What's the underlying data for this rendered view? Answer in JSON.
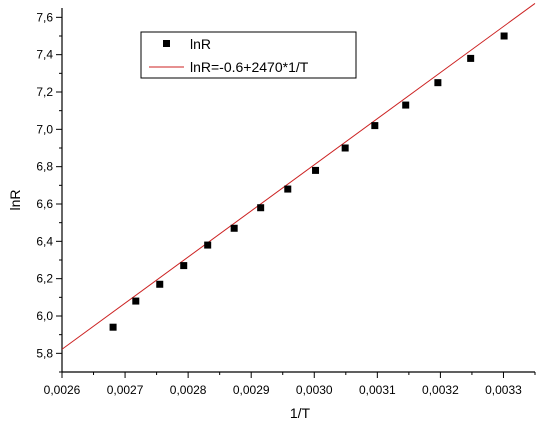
{
  "chart_data": {
    "type": "scatter",
    "xlabel": "1/T",
    "ylabel": "lnR",
    "xlim": [
      0.0026,
      0.00335
    ],
    "ylim": [
      5.7,
      7.65
    ],
    "x_ticks": [
      0.0026,
      0.0027,
      0.0028,
      0.0029,
      0.003,
      0.0031,
      0.0032,
      0.0033
    ],
    "x_tick_labels": [
      "0,0026",
      "0,0027",
      "0,0028",
      "0,0029",
      "0,0030",
      "0,0031",
      "0,0032",
      "0,0033"
    ],
    "y_ticks": [
      5.8,
      6.0,
      6.2,
      6.4,
      6.6,
      6.8,
      7.0,
      7.2,
      7.4,
      7.6
    ],
    "y_tick_labels": [
      "5,8",
      "6,0",
      "6,2",
      "6,4",
      "6,6",
      "6,8",
      "7,0",
      "7,2",
      "7,4",
      "7,6"
    ],
    "grid": false,
    "legend_position": "top-left",
    "series": [
      {
        "name": "lnR",
        "kind": "scatter",
        "marker": "square",
        "color": "#000000",
        "x": [
          0.002681,
          0.002717,
          0.002755,
          0.002793,
          0.002831,
          0.002873,
          0.002915,
          0.002958,
          0.003002,
          0.003049,
          0.003096,
          0.003145,
          0.003196,
          0.003248,
          0.003301
        ],
        "y": [
          5.94,
          6.08,
          6.17,
          6.27,
          6.38,
          6.47,
          6.58,
          6.68,
          6.78,
          6.9,
          7.02,
          7.13,
          7.25,
          7.38,
          7.5
        ]
      },
      {
        "name": "lnR=-0.6+2470*1/T",
        "kind": "line",
        "color": "#cc2222",
        "intercept": -0.6,
        "slope": 2470,
        "x": [
          0.0026,
          0.00335
        ]
      }
    ]
  }
}
